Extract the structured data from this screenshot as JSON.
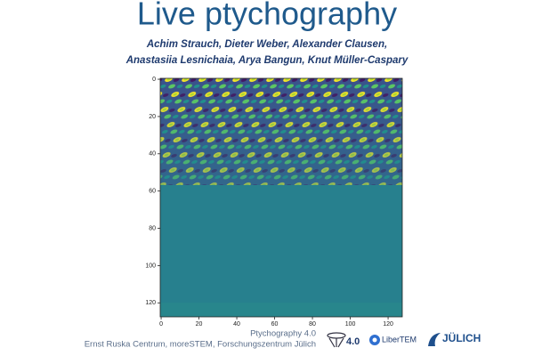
{
  "title": "Live ptychography",
  "authors": [
    "Achim Strauch, Dieter Weber, Alexander Clausen,",
    "Anastasiia Lesnichaia, Arya Bangun, Knut Müller-Caspary"
  ],
  "chart_data": {
    "type": "image",
    "xlim": [
      -0.5,
      127.5
    ],
    "ylim": [
      127.5,
      -0.5
    ],
    "xticks": [
      0,
      20,
      40,
      60,
      80,
      100,
      120
    ],
    "yticks": [
      0,
      20,
      40,
      60,
      80,
      100,
      120
    ]
  },
  "footer": {
    "line1": "Ptychography 4.0",
    "line2": "Ernst Ruska Centrum, moreSTEM, Forschungszentrum Jülich"
  },
  "logos": [
    "4.0",
    "LiberTEM",
    "JÜLICH"
  ]
}
